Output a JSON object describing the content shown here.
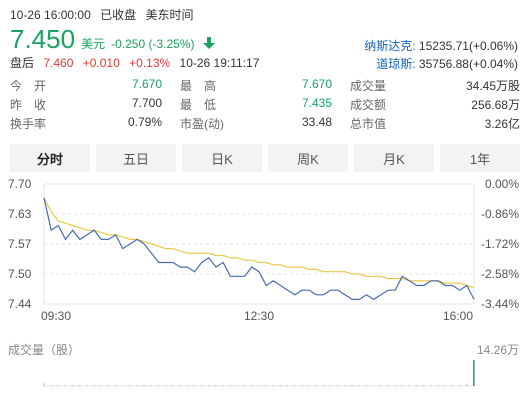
{
  "header": {
    "datetime": "10-26 16:00:00",
    "status": "已收盘",
    "timezone": "美东时间"
  },
  "quote": {
    "price": "7.450",
    "currency": "美元",
    "change": "-0.250 (-3.25%)",
    "trend_icon": "down-arrow-icon"
  },
  "after_hours": {
    "label": "盘后",
    "price": "7.460",
    "change": "+0.010",
    "pct": "+0.13%",
    "time": "10-26 19:11:17"
  },
  "indices": [
    {
      "name": "纳斯达克:",
      "value": "15235.71(+0.06%)"
    },
    {
      "name": "道琼斯:",
      "value": "35756.88(+0.04%)"
    }
  ],
  "stats": [
    [
      {
        "k": "今　开",
        "v": "7.670",
        "green": true
      },
      {
        "k": "最　高",
        "v": "7.670",
        "green": true
      },
      {
        "k": "成交量",
        "v": "34.45万股",
        "green": false
      }
    ],
    [
      {
        "k": "昨　收",
        "v": "7.700",
        "green": false
      },
      {
        "k": "最　低",
        "v": "7.435",
        "green": true
      },
      {
        "k": "成交额",
        "v": "256.68万",
        "green": false
      }
    ],
    [
      {
        "k": "换手率",
        "v": "0.79%",
        "green": false
      },
      {
        "k": "市盈(动)",
        "v": "33.48",
        "green": false
      },
      {
        "k": "总市值",
        "v": "3.26亿",
        "green": false
      }
    ]
  ],
  "tabs": [
    "分时",
    "五日",
    "日K",
    "周K",
    "月K",
    "1年"
  ],
  "active_tab": 0,
  "colors": {
    "down": "#1aa260",
    "up": "#e53935",
    "price_line": "#4a6bb5",
    "avg_line": "#e8c94a",
    "link": "#1565c0"
  },
  "chart_data": {
    "type": "line",
    "y_left_ticks": [
      "7.70",
      "7.63",
      "7.57",
      "7.50",
      "7.44"
    ],
    "y_right_ticks": [
      "0.00%",
      "-0.86%",
      "-1.72%",
      "-2.58%",
      "-3.44%"
    ],
    "x_ticks": [
      "09:30",
      "12:30",
      "16:00"
    ],
    "ylim": [
      7.44,
      7.7
    ],
    "volume_label": "成交量（股）",
    "volume_max": "14.26万",
    "series": [
      {
        "values": [
          7.67,
          7.6,
          7.61,
          7.58,
          7.6,
          7.58,
          7.59,
          7.6,
          7.58,
          7.58,
          7.59,
          7.56,
          7.57,
          7.58,
          7.57,
          7.55,
          7.53,
          7.53,
          7.53,
          7.52,
          7.52,
          7.51,
          7.53,
          7.54,
          7.52,
          7.53,
          7.5,
          7.5,
          7.5,
          7.52,
          7.51,
          7.48,
          7.49,
          7.48,
          7.47,
          7.46,
          7.47,
          7.47,
          7.46,
          7.46,
          7.47,
          7.47,
          7.46,
          7.45,
          7.45,
          7.46,
          7.45,
          7.46,
          7.47,
          7.47,
          7.5,
          7.49,
          7.48,
          7.48,
          7.49,
          7.49,
          7.48,
          7.48,
          7.47,
          7.48,
          7.45
        ]
      },
      {
        "values": [
          7.67,
          7.64,
          7.62,
          7.615,
          7.61,
          7.605,
          7.6,
          7.6,
          7.595,
          7.59,
          7.59,
          7.585,
          7.58,
          7.58,
          7.575,
          7.57,
          7.565,
          7.56,
          7.56,
          7.555,
          7.55,
          7.55,
          7.55,
          7.55,
          7.545,
          7.545,
          7.54,
          7.54,
          7.535,
          7.535,
          7.53,
          7.53,
          7.525,
          7.525,
          7.52,
          7.52,
          7.52,
          7.515,
          7.515,
          7.51,
          7.51,
          7.51,
          7.51,
          7.505,
          7.505,
          7.5,
          7.5,
          7.5,
          7.495,
          7.495,
          7.495,
          7.49,
          7.49,
          7.49,
          7.49,
          7.49,
          7.485,
          7.485,
          7.485,
          7.48,
          7.475
        ]
      }
    ],
    "volume": [
      3,
      1,
      1,
      1,
      1,
      1,
      1,
      1,
      0.5,
      1,
      0.5,
      0.5,
      1,
      0.5,
      0.5,
      0.5,
      0.5,
      0.5,
      0.5,
      0.5,
      0.5,
      0.5,
      0.5,
      0.5,
      0.5,
      0.5,
      0.5,
      0.5,
      0.5,
      0.5,
      0.5,
      0.5,
      0.5,
      0.5,
      0.5,
      0.5,
      0.5,
      0.5,
      0.5,
      0.5,
      0.5,
      0.5,
      0.5,
      0.5,
      0.5,
      0.5,
      0.5,
      0.5,
      0.5,
      0.5,
      0.5,
      0.5,
      0.5,
      0.5,
      0.5,
      0.5,
      0.5,
      0.5,
      1,
      2,
      28
    ]
  }
}
